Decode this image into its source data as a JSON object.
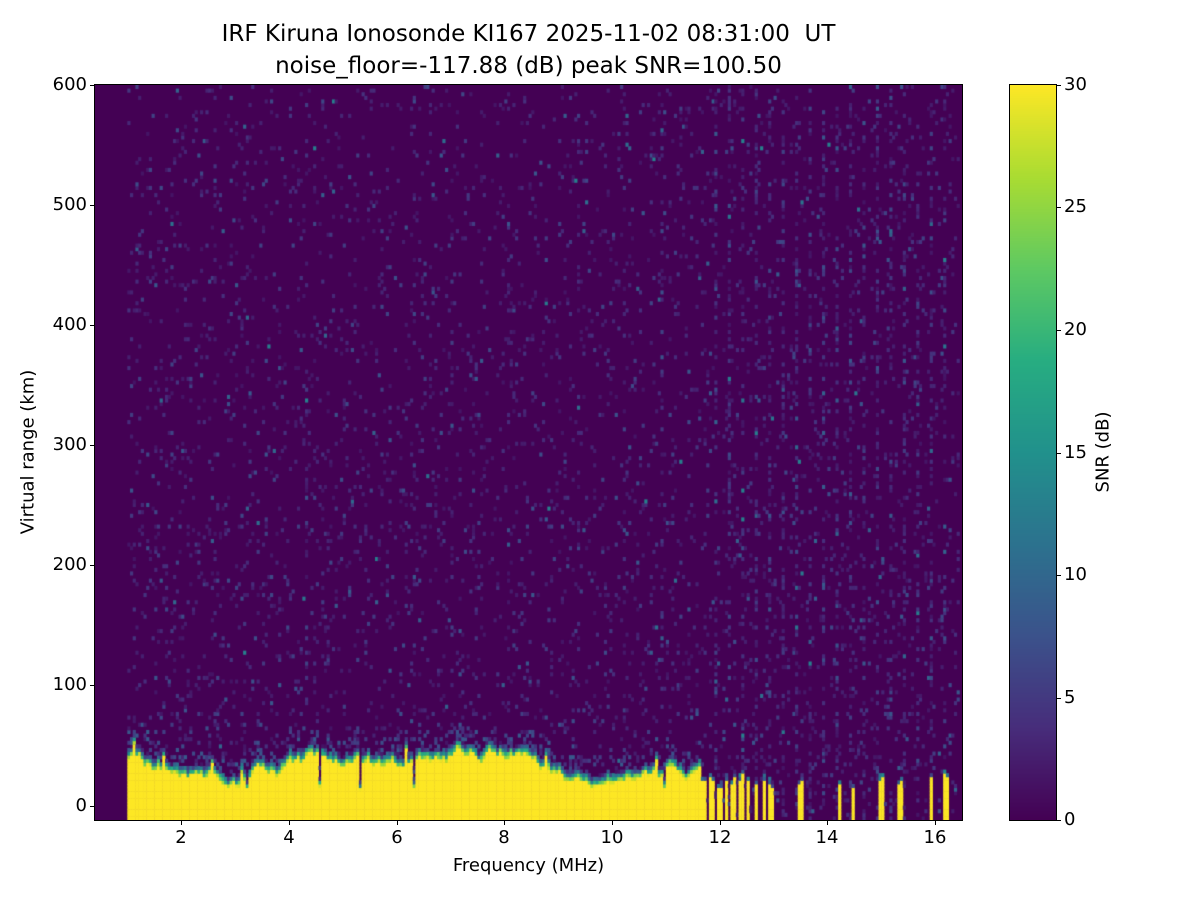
{
  "chart_data": {
    "type": "heatmap",
    "title": "IRF Kiruna Ionosonde KI167 2025-11-02 08:31:00  UT",
    "subtitle": "noise_floor=-117.88 (dB) peak SNR=100.50",
    "xlabel": "Frequency (MHz)",
    "ylabel": "Virtual range (km)",
    "colorbar_label": "SNR (dB)",
    "xlim": [
      0.4,
      16.5
    ],
    "ylim": [
      -12,
      600
    ],
    "clim": [
      0,
      30
    ],
    "xticks": [
      2,
      4,
      6,
      8,
      10,
      12,
      14,
      16
    ],
    "yticks": [
      0,
      100,
      200,
      300,
      400,
      500,
      600
    ],
    "colorbar_ticks": [
      0,
      5,
      10,
      15,
      20,
      25,
      30
    ],
    "colormap": "viridis",
    "colormap_stops": [
      "#440154",
      "#472d7b",
      "#3b528b",
      "#2c728e",
      "#21918c",
      "#27ad81",
      "#5ec962",
      "#aadc32",
      "#fde725"
    ],
    "data_extent_mhz": [
      1.0,
      16.42
    ],
    "resolution": {
      "freq_step_mhz": 0.05,
      "range_step_km": 3
    },
    "features": {
      "noise_floor_db": -117.88,
      "peak_snr_db": 100.5,
      "ground_clutter": {
        "freq_range_mhz": [
          1.0,
          11.62
        ],
        "top_km_mean": 29,
        "top_km_min": 17,
        "top_km_max": 44,
        "snr_db": 30
      },
      "intermittent_clutter_stripes_mhz": [
        [
          11.65,
          11.73
        ],
        [
          11.79,
          11.87
        ],
        [
          11.93,
          12.01
        ],
        [
          12.07,
          12.14
        ],
        [
          12.2,
          12.28
        ],
        [
          12.34,
          12.42
        ],
        [
          12.48,
          12.55
        ],
        [
          12.62,
          12.7
        ],
        [
          12.76,
          12.84
        ],
        [
          12.9,
          12.97
        ],
        [
          13.45,
          13.55
        ],
        [
          14.17,
          14.25
        ],
        [
          14.42,
          14.48
        ],
        [
          14.95,
          15.02
        ],
        [
          15.3,
          15.38
        ],
        [
          15.88,
          15.95
        ],
        [
          16.15,
          16.22
        ]
      ],
      "interference_lines_mhz": [
        2.6,
        4.3,
        6.3,
        7.0,
        8.05,
        9.35,
        10.2,
        10.9,
        11.9,
        12.15,
        12.4,
        12.65,
        12.9,
        13.15,
        13.4,
        13.65,
        13.9,
        14.15,
        14.4,
        14.65,
        14.9,
        15.15,
        15.4,
        15.65,
        15.9,
        16.15
      ],
      "background_speckle_density": 0.045,
      "seed": 20251102
    }
  }
}
